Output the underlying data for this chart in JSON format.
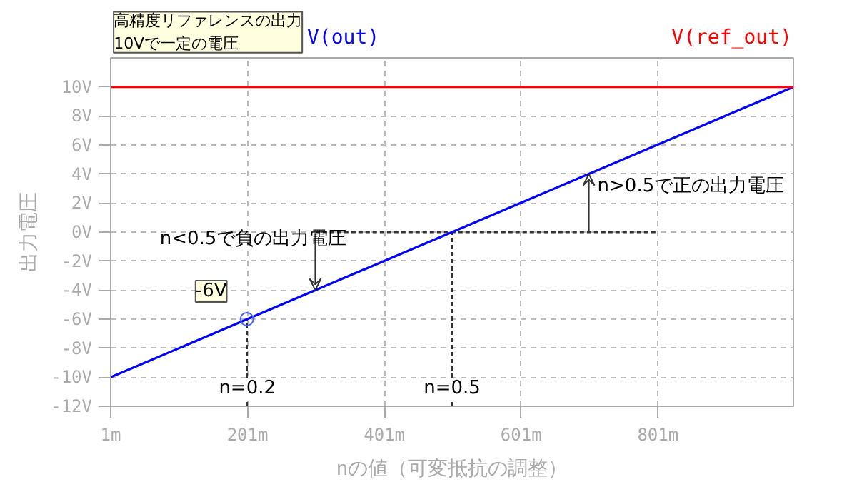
{
  "chart_data": {
    "type": "line",
    "xlabel": "nの値（可変抵抗の調整）",
    "ylabel": "出力電圧",
    "xlim": [
      1,
      999
    ],
    "ylim": [
      -12,
      12
    ],
    "xticks": [
      {
        "value": 1,
        "label": "1m"
      },
      {
        "value": 201,
        "label": "201m"
      },
      {
        "value": 401,
        "label": "401m"
      },
      {
        "value": 601,
        "label": "601m"
      },
      {
        "value": 801,
        "label": "801m"
      }
    ],
    "yticks": [
      {
        "value": -12,
        "label": "-12V"
      },
      {
        "value": -10,
        "label": "-10V"
      },
      {
        "value": -8,
        "label": "-8V"
      },
      {
        "value": -6,
        "label": "-6V"
      },
      {
        "value": -4,
        "label": "-4V"
      },
      {
        "value": -2,
        "label": "-2V"
      },
      {
        "value": 0,
        "label": "0V"
      },
      {
        "value": 2,
        "label": "2V"
      },
      {
        "value": 4,
        "label": "4V"
      },
      {
        "value": 6,
        "label": "6V"
      },
      {
        "value": 8,
        "label": "8V"
      },
      {
        "value": 10,
        "label": "10V"
      }
    ],
    "x": [
      1,
      999
    ],
    "series": [
      {
        "name": "V(out)",
        "color": "#0000ff",
        "values": [
          -10,
          10
        ]
      },
      {
        "name": "V(ref_out)",
        "color": "#ff0000",
        "values": [
          10,
          10
        ]
      }
    ],
    "grid": true,
    "legend": "top",
    "line_style": "solid",
    "ref_lines": [
      {
        "axis": "x",
        "value": 200,
        "line_style": "dotted",
        "color": "#333333"
      },
      {
        "axis": "x",
        "value": 500,
        "line_style": "dotted",
        "color": "#333333"
      },
      {
        "axis": "y",
        "value": 0,
        "line_style": "dotted",
        "color": "#333333"
      }
    ],
    "annotations": [
      {
        "text": "高精度リファレンスの出力\n10Vで一定の電圧",
        "x": 163,
        "y": 10
      },
      {
        "text": "-6V",
        "x": 200,
        "y": -6
      },
      {
        "text": "n<0.5で負の出力電圧",
        "x": 300,
        "y": -4
      },
      {
        "text": "n>0.5で正の出力電圧",
        "x": 700,
        "y": 4
      },
      "n=0.2",
      "n=0.5"
    ]
  }
}
